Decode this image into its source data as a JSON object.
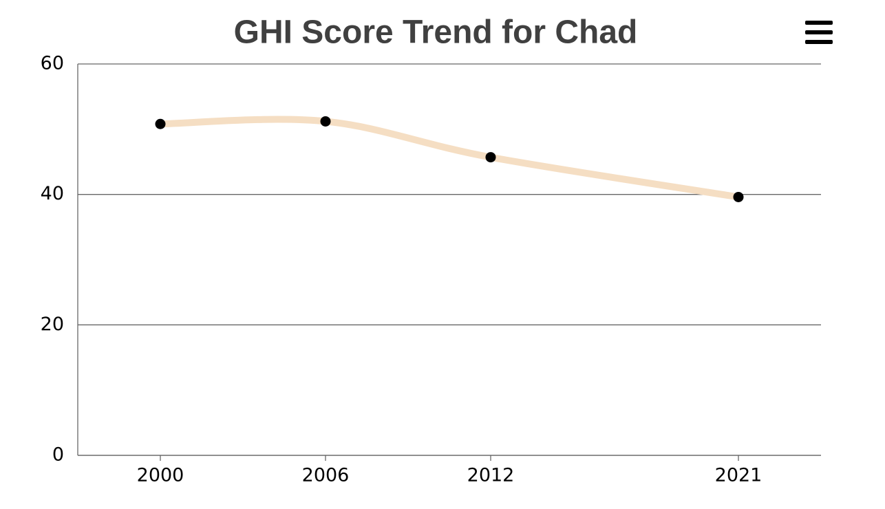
{
  "chart_data": {
    "type": "line",
    "title": "GHI Score Trend for Chad",
    "x": [
      2000,
      2006,
      2012,
      2021
    ],
    "series": [
      {
        "values": [
          50.8,
          51.2,
          45.7,
          39.6
        ],
        "color": "#f5dec3"
      }
    ],
    "xlim": [
      1997,
      2024
    ],
    "xticks": [
      2000,
      2006,
      2012,
      2021
    ],
    "ylim": [
      0,
      60
    ],
    "yticks": [
      0,
      20,
      40,
      60
    ],
    "grid": true
  }
}
